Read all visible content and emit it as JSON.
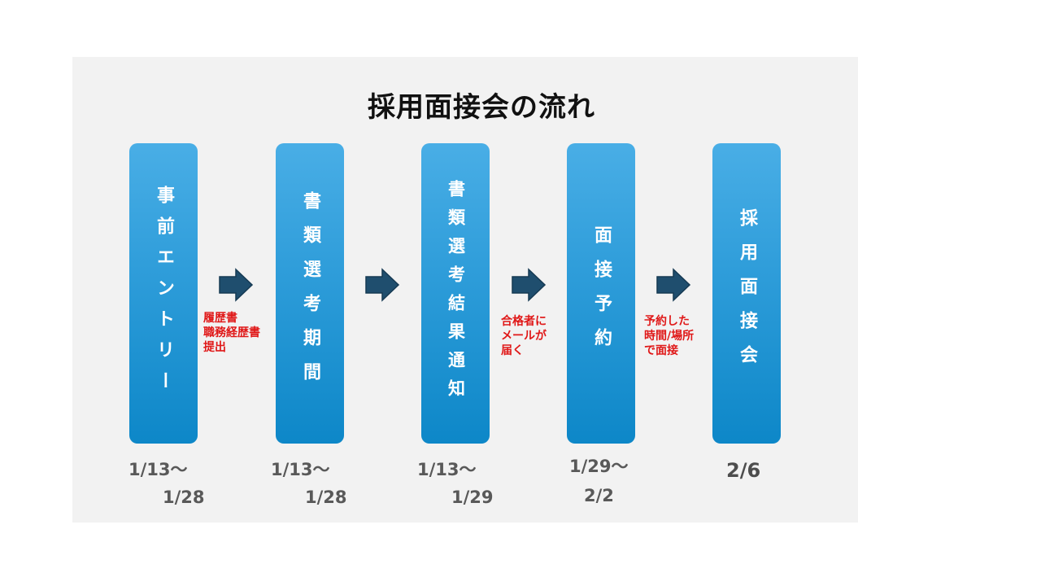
{
  "title": "採用面接会の流れ",
  "steps": [
    {
      "label": "事前エントリー"
    },
    {
      "label": "書類選考期間"
    },
    {
      "label": "書類選考結果通知"
    },
    {
      "label": "面接予約"
    },
    {
      "label": "採用面接会"
    }
  ],
  "notes": [
    {
      "text": "履歴書\n職務経歴書\n提出"
    },
    {
      "text": "合格者に\nメールが\n届く"
    },
    {
      "text": "予約した\n時間/場所\nで面接"
    }
  ],
  "dates": [
    {
      "start": "1/13～",
      "end": "1/28"
    },
    {
      "start": "1/13～",
      "end": "1/28"
    },
    {
      "start": "1/13～",
      "end": "1/29"
    },
    {
      "start": "1/29～",
      "end": "2/2"
    },
    {
      "single": "2/6"
    }
  ],
  "colors": {
    "box_top": "#49aee6",
    "box_bottom": "#0d87c8",
    "arrow_fill": "#1f4e6e",
    "note_text": "#e01818",
    "panel_bg": "#f2f2f2"
  },
  "icons": [
    "right-arrow-icon"
  ]
}
